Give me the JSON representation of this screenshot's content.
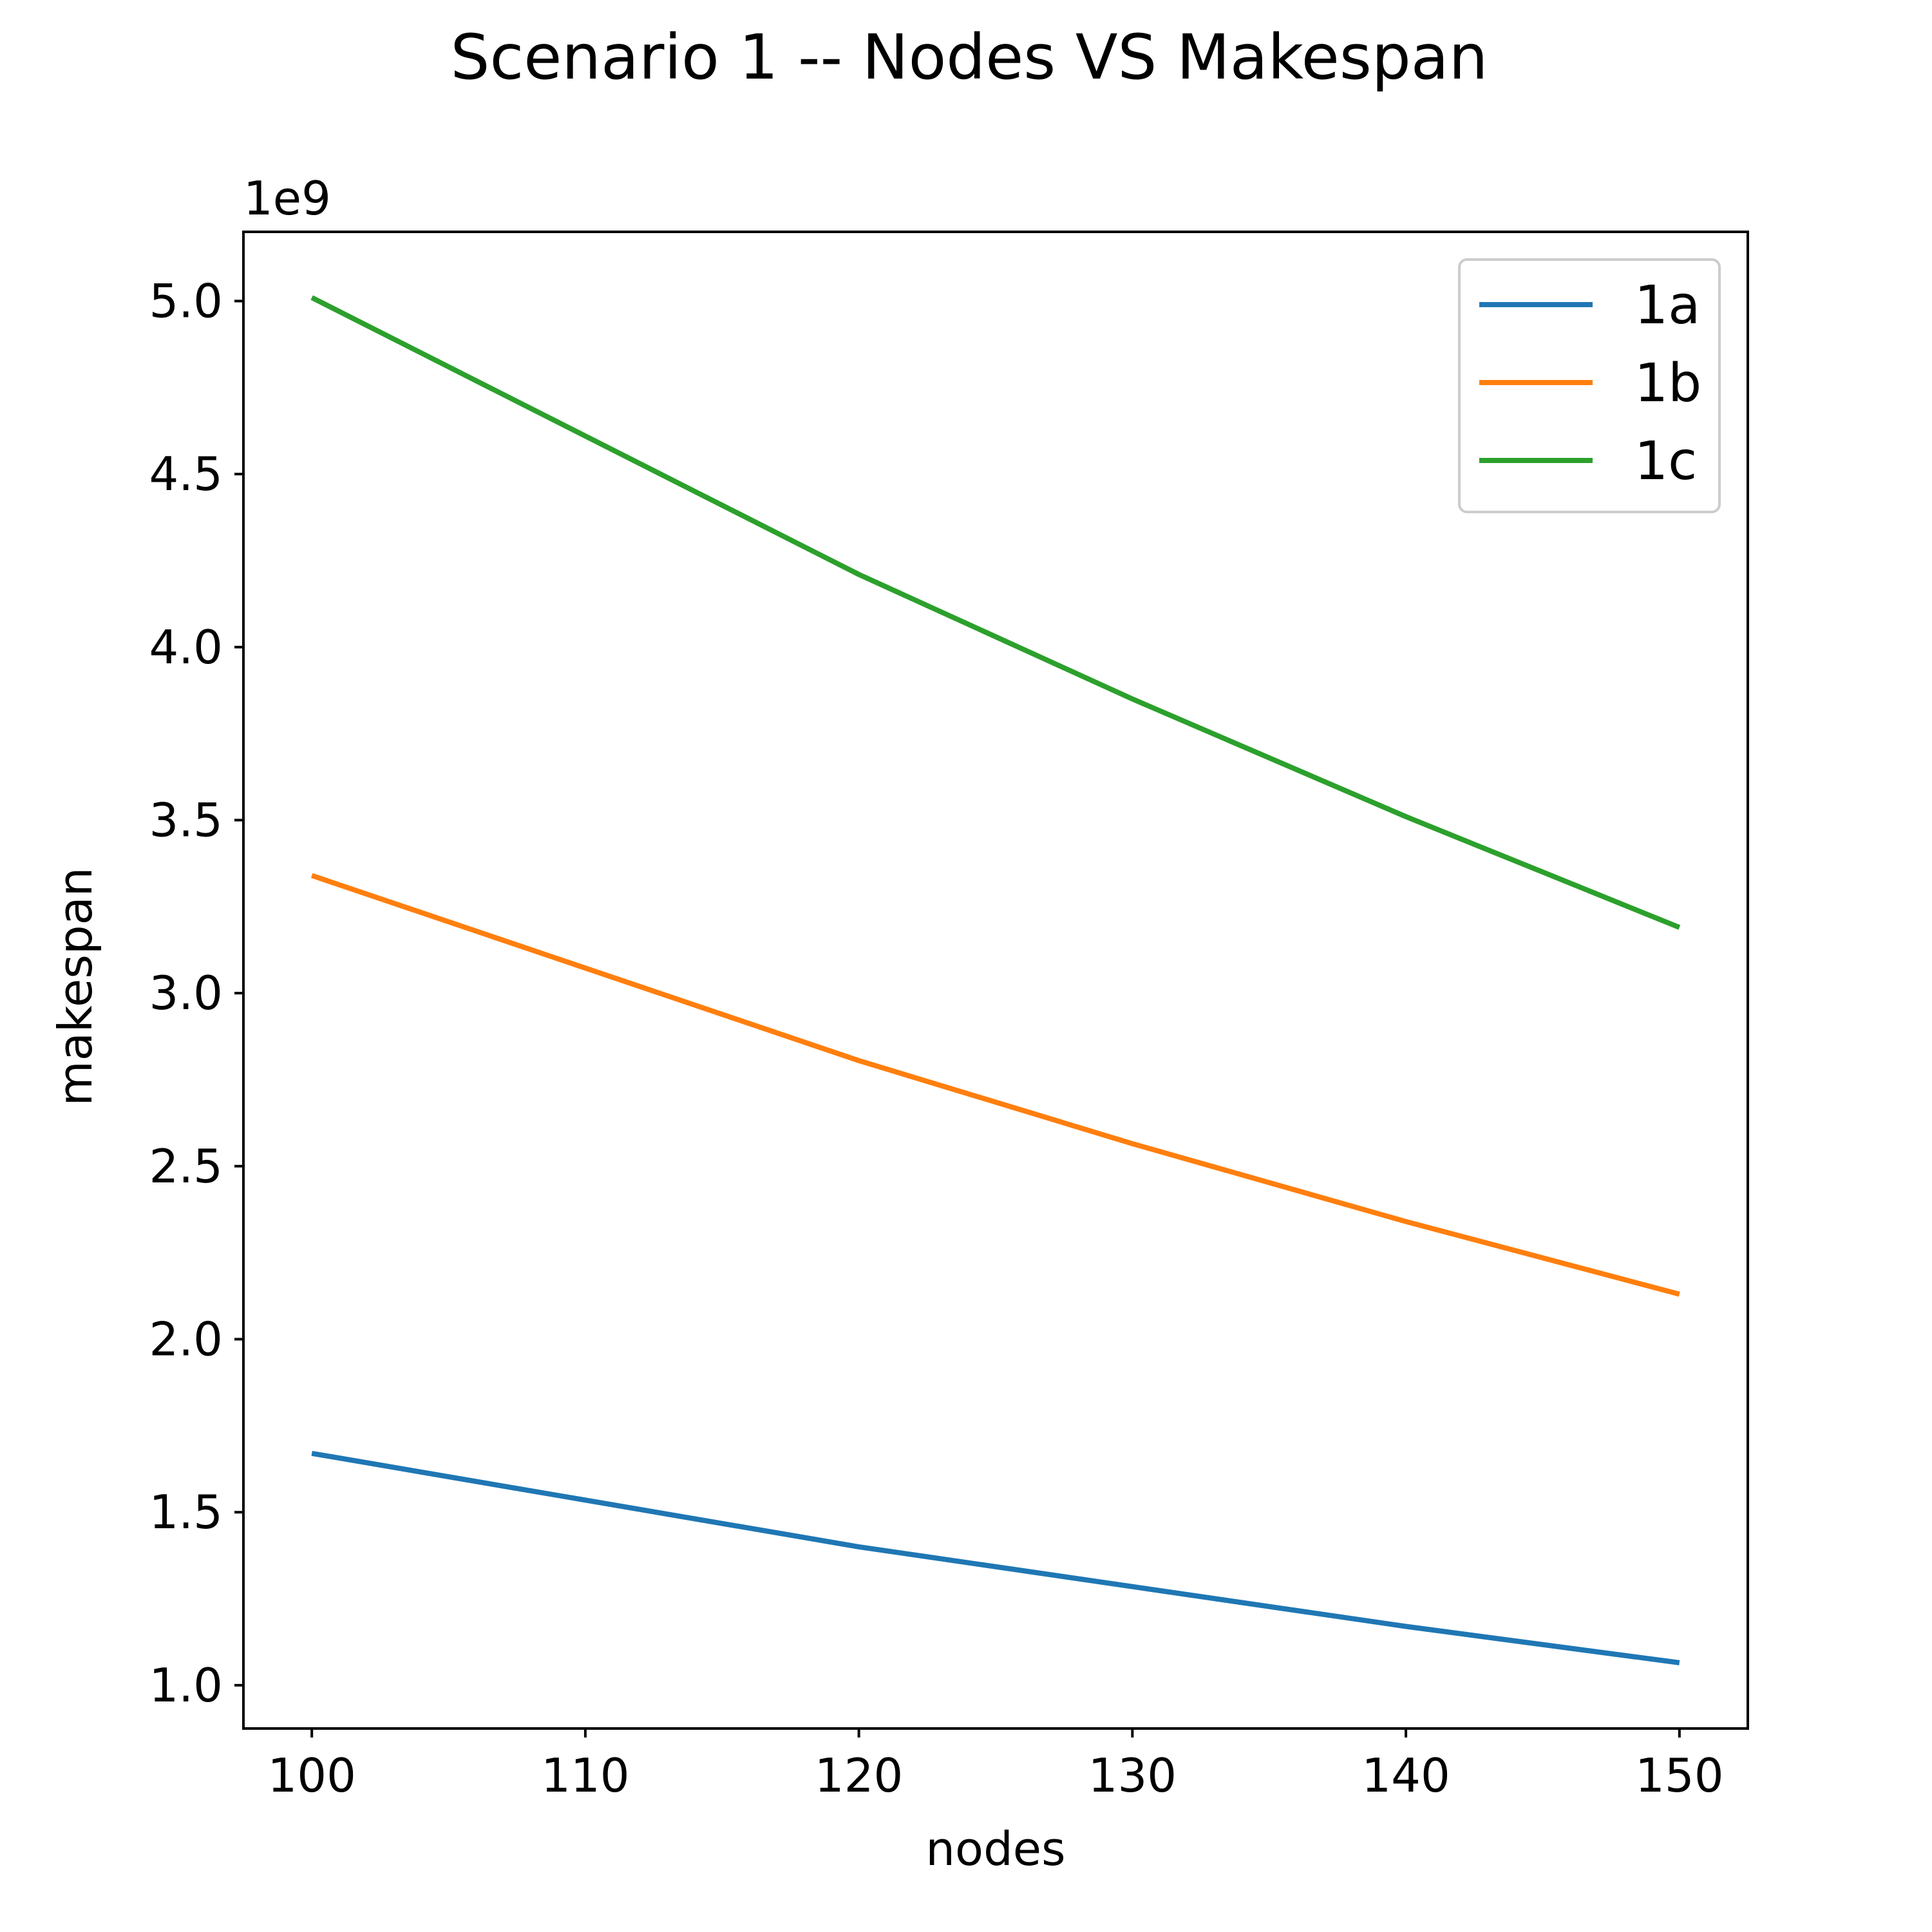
{
  "chart_data": {
    "type": "line",
    "title": "Scenario 1 -- Nodes VS Makespan",
    "xlabel": "nodes",
    "ylabel": "makespan",
    "y_offset_label": "1e9",
    "x": [
      100,
      120,
      130,
      140,
      150
    ],
    "series": [
      {
        "name": "1a",
        "color": "#1f77b4",
        "values": [
          1670000000.0,
          1400000000.0,
          1285000000.0,
          1170000000.0,
          1065000000.0
        ]
      },
      {
        "name": "1b",
        "color": "#ff7f0e",
        "values": [
          3340000000.0,
          2805000000.0,
          2565000000.0,
          2340000000.0,
          2130000000.0
        ]
      },
      {
        "name": "1c",
        "color": "#2ca02c",
        "values": [
          5010000000.0,
          4210000000.0,
          3850000000.0,
          3510000000.0,
          3190000000.0
        ]
      }
    ],
    "xlim": [
      97.5,
      152.5
    ],
    "ylim": [
      875000000.0,
      5200000000.0
    ],
    "xticks": [
      100,
      110,
      120,
      130,
      140,
      150
    ],
    "xtick_labels": [
      "100",
      "110",
      "120",
      "130",
      "140",
      "150"
    ],
    "yticks": [
      1000000000.0,
      1500000000.0,
      2000000000.0,
      2500000000.0,
      3000000000.0,
      3500000000.0,
      4000000000.0,
      4500000000.0,
      5000000000.0
    ],
    "ytick_labels": [
      "1.0",
      "1.5",
      "2.0",
      "2.5",
      "3.0",
      "3.5",
      "4.0",
      "4.5",
      "5.0"
    ],
    "grid": false,
    "legend_position": "top-right"
  }
}
